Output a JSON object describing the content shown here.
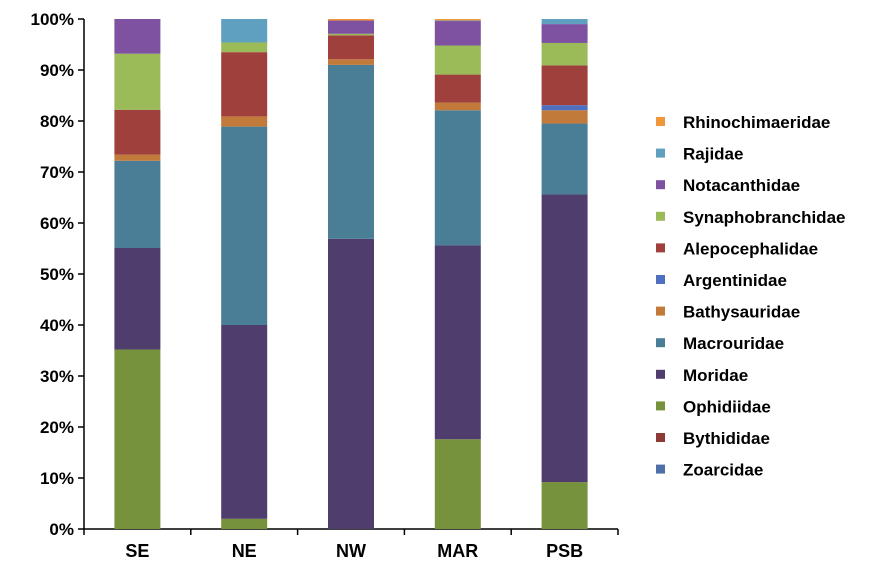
{
  "chart_data": {
    "type": "bar",
    "stacked": true,
    "normalized": true,
    "categories": [
      "SE",
      "NE",
      "NW",
      "MAR",
      "PSB"
    ],
    "ylim": [
      0,
      100
    ],
    "yticks": [
      "0%",
      "10%",
      "20%",
      "30%",
      "40%",
      "50%",
      "60%",
      "70%",
      "80%",
      "90%",
      "100%"
    ],
    "grid": false,
    "legend_position": "right",
    "series": [
      {
        "name": "Zoarcidae",
        "color": "#4f6fa8",
        "values": [
          0,
          0,
          0,
          0,
          0
        ]
      },
      {
        "name": "Bythididae",
        "color": "#8b3a36",
        "values": [
          0,
          0,
          0,
          0,
          0
        ]
      },
      {
        "name": "Ophidiidae",
        "color": "#76923c",
        "values": [
          35.2,
          2.0,
          0,
          17.6,
          9.2
        ]
      },
      {
        "name": "Moridae",
        "color": "#4f3d6e",
        "values": [
          19.9,
          38.0,
          56.9,
          38.0,
          56.4
        ]
      },
      {
        "name": "Macrouridae",
        "color": "#4a7d96",
        "values": [
          17.1,
          38.9,
          34.1,
          26.5,
          13.9
        ]
      },
      {
        "name": "Bathysauridae",
        "color": "#c27a3a",
        "values": [
          1.2,
          2.0,
          1.1,
          1.5,
          2.6
        ]
      },
      {
        "name": "Argentinidae",
        "color": "#4f6fc0",
        "values": [
          0,
          0,
          0,
          0,
          1.0
        ]
      },
      {
        "name": "Alepocephalidae",
        "color": "#a0403d",
        "values": [
          8.8,
          12.6,
          4.7,
          5.5,
          7.8
        ]
      },
      {
        "name": "Synaphobranchidae",
        "color": "#9bbb59",
        "values": [
          11.0,
          1.9,
          0.3,
          5.7,
          4.4
        ]
      },
      {
        "name": "Notacanthidae",
        "color": "#7e52a0",
        "values": [
          6.8,
          0,
          2.6,
          4.8,
          3.7
        ]
      },
      {
        "name": "Rajidae",
        "color": "#5fa0c0",
        "values": [
          0,
          4.6,
          0,
          0.1,
          1.0
        ]
      },
      {
        "name": "Rhinochimaeridae",
        "color": "#f2963c",
        "values": [
          0,
          0,
          0.3,
          0.3,
          0
        ]
      }
    ]
  }
}
